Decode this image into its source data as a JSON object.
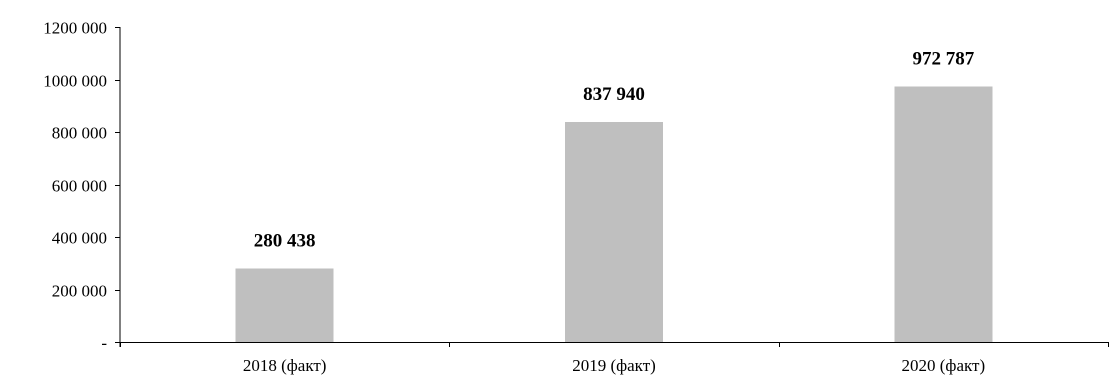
{
  "chart_data": {
    "type": "bar",
    "title": "",
    "xlabel": "",
    "ylabel": "",
    "categories": [
      "2018 (факт)",
      "2019 (факт)",
      "2020 (факт)"
    ],
    "values": [
      280438,
      837940,
      972787
    ],
    "data_labels": [
      "280 438",
      "837 940",
      "972 787"
    ],
    "ylim": [
      0,
      1200000
    ],
    "yticks": [
      0,
      200000,
      400000,
      600000,
      800000,
      1000000,
      1200000
    ],
    "ytick_labels": [
      "-",
      "200 000",
      "400 000",
      "600 000",
      "800 000",
      "1000 000",
      "1200 000"
    ],
    "grid": false,
    "legend": "none",
    "bar_color": "#bfbfbf"
  }
}
